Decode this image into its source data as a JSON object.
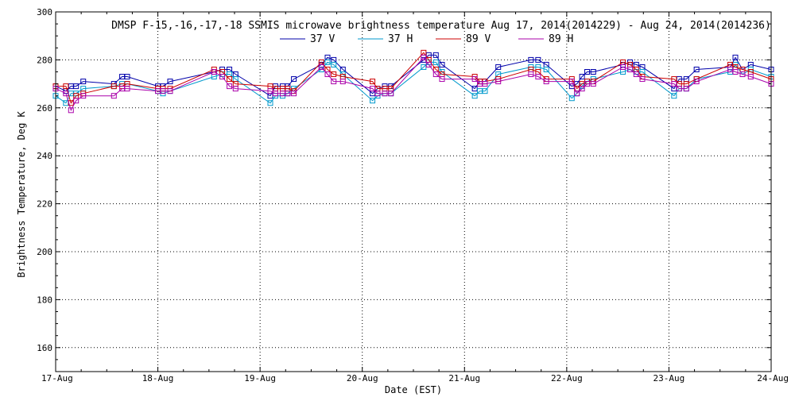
{
  "chart_data": {
    "type": "line",
    "title": "DMSP F-15,-16,-17,-18 SSMIS microwave brightness temperature Aug 17, 2014(2014229) - Aug 24, 2014(2014236)",
    "xlabel": "Date (EST)",
    "ylabel": "Brightness Temperature, Deg K",
    "xlim": [
      0,
      7
    ],
    "ylim": [
      150,
      300
    ],
    "yticks": [
      160,
      180,
      200,
      220,
      240,
      260,
      280,
      300
    ],
    "xticks": [
      0,
      1,
      2,
      3,
      4,
      5,
      6,
      7
    ],
    "xtick_labels": [
      "17-Aug",
      "18-Aug",
      "19-Aug",
      "20-Aug",
      "21-Aug",
      "22-Aug",
      "23-Aug",
      "24-Aug"
    ],
    "grid": true,
    "legend_position": "top",
    "series": [
      {
        "name": "37 V",
        "color": "#0000aa",
        "x": [
          0.0,
          0.1,
          0.15,
          0.2,
          0.27,
          0.57,
          0.65,
          0.7,
          1.0,
          1.05,
          1.12,
          1.55,
          1.63,
          1.7,
          1.76,
          2.1,
          2.15,
          2.22,
          2.27,
          2.33,
          2.6,
          2.66,
          2.72,
          2.81,
          3.1,
          3.15,
          3.22,
          3.28,
          3.6,
          3.65,
          3.72,
          3.78,
          4.1,
          4.15,
          4.2,
          4.33,
          4.65,
          4.72,
          4.8,
          5.05,
          5.1,
          5.15,
          5.2,
          5.26,
          5.55,
          5.62,
          5.68,
          5.74,
          6.05,
          6.1,
          6.17,
          6.27,
          6.6,
          6.65,
          6.72,
          6.8,
          7.0
        ],
        "values": [
          269,
          267,
          269,
          269,
          271,
          270,
          273,
          273,
          269,
          269,
          271,
          275,
          276,
          276,
          274,
          265,
          269,
          269,
          269,
          272,
          278,
          281,
          280,
          276,
          266,
          268,
          269,
          269,
          280,
          282,
          282,
          278,
          268,
          271,
          271,
          277,
          280,
          280,
          278,
          269,
          270,
          273,
          275,
          275,
          278,
          279,
          278,
          277,
          268,
          272,
          272,
          276,
          277,
          281,
          276,
          278,
          276
        ]
      },
      {
        "name": "37 H",
        "color": "#0099cc",
        "x": [
          0.0,
          0.1,
          0.15,
          0.2,
          0.27,
          0.57,
          0.65,
          0.7,
          1.0,
          1.05,
          1.12,
          1.55,
          1.63,
          1.7,
          1.76,
          2.1,
          2.15,
          2.22,
          2.27,
          2.33,
          2.6,
          2.66,
          2.72,
          2.81,
          3.1,
          3.15,
          3.22,
          3.28,
          3.6,
          3.65,
          3.72,
          3.78,
          4.1,
          4.15,
          4.2,
          4.33,
          4.65,
          4.72,
          4.8,
          5.05,
          5.1,
          5.15,
          5.2,
          5.26,
          5.55,
          5.62,
          5.68,
          5.74,
          6.05,
          6.1,
          6.17,
          6.27,
          6.6,
          6.65,
          6.72,
          6.8,
          7.0
        ],
        "values": [
          265,
          262,
          266,
          266,
          268,
          269,
          270,
          270,
          267,
          266,
          267,
          273,
          274,
          274,
          272,
          262,
          265,
          265,
          266,
          268,
          276,
          279,
          278,
          274,
          263,
          265,
          266,
          266,
          277,
          279,
          279,
          275,
          265,
          267,
          267,
          274,
          277,
          277,
          276,
          264,
          266,
          269,
          271,
          272,
          275,
          276,
          275,
          275,
          265,
          268,
          268,
          272,
          275,
          278,
          274,
          276,
          273
        ]
      },
      {
        "name": "89 V",
        "color": "#cc0000",
        "x": [
          0.0,
          0.1,
          0.15,
          0.2,
          0.27,
          0.57,
          0.65,
          0.7,
          1.0,
          1.05,
          1.12,
          1.55,
          1.63,
          1.7,
          1.76,
          2.1,
          2.15,
          2.22,
          2.27,
          2.33,
          2.6,
          2.66,
          2.72,
          2.81,
          3.1,
          3.15,
          3.22,
          3.28,
          3.6,
          3.65,
          3.72,
          3.78,
          4.1,
          4.15,
          4.2,
          4.33,
          4.65,
          4.72,
          4.8,
          5.05,
          5.1,
          5.15,
          5.2,
          5.26,
          5.55,
          5.62,
          5.68,
          5.74,
          6.05,
          6.1,
          6.17,
          6.27,
          6.6,
          6.65,
          6.72,
          6.8,
          7.0
        ],
        "values": [
          269,
          269,
          262,
          265,
          266,
          269,
          269,
          270,
          268,
          268,
          268,
          276,
          275,
          272,
          270,
          269,
          268,
          268,
          268,
          267,
          279,
          276,
          274,
          273,
          271,
          268,
          268,
          268,
          283,
          280,
          276,
          274,
          273,
          271,
          271,
          272,
          276,
          275,
          272,
          272,
          268,
          270,
          271,
          271,
          279,
          278,
          276,
          273,
          272,
          270,
          270,
          272,
          278,
          277,
          276,
          275,
          272
        ]
      },
      {
        "name": "89 H",
        "color": "#aa00aa",
        "x": [
          0.0,
          0.1,
          0.15,
          0.2,
          0.27,
          0.57,
          0.65,
          0.7,
          1.0,
          1.05,
          1.12,
          1.55,
          1.63,
          1.7,
          1.76,
          2.1,
          2.15,
          2.22,
          2.27,
          2.33,
          2.6,
          2.66,
          2.72,
          2.81,
          3.1,
          3.15,
          3.22,
          3.28,
          3.6,
          3.65,
          3.72,
          3.78,
          4.1,
          4.15,
          4.2,
          4.33,
          4.65,
          4.72,
          4.8,
          5.05,
          5.1,
          5.15,
          5.2,
          5.26,
          5.55,
          5.62,
          5.68,
          5.74,
          6.05,
          6.1,
          6.17,
          6.27,
          6.6,
          6.65,
          6.72,
          6.8,
          7.0
        ],
        "values": [
          268,
          266,
          259,
          263,
          265,
          265,
          268,
          268,
          267,
          267,
          267,
          275,
          273,
          269,
          268,
          267,
          266,
          266,
          266,
          266,
          277,
          274,
          271,
          271,
          268,
          266,
          266,
          266,
          281,
          278,
          274,
          272,
          272,
          270,
          270,
          271,
          274,
          273,
          271,
          271,
          266,
          268,
          270,
          270,
          277,
          276,
          274,
          272,
          270,
          268,
          268,
          271,
          276,
          275,
          274,
          273,
          270
        ]
      }
    ]
  }
}
